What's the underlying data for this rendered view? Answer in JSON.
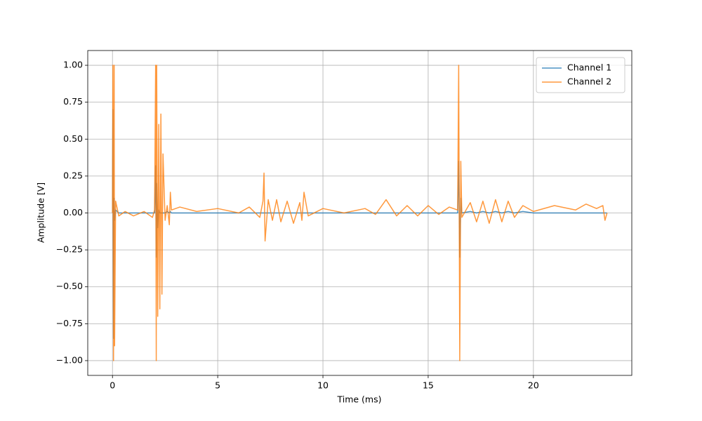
{
  "chart_data": {
    "type": "line",
    "xlabel": "Time (ms)",
    "ylabel": "Amplitude [V]",
    "x": [
      0,
      0.02,
      0.05,
      0.08,
      0.1,
      0.15,
      0.3,
      0.6,
      1.0,
      1.5,
      1.9,
      2.0,
      2.05,
      2.08,
      2.1,
      2.15,
      2.2,
      2.25,
      2.3,
      2.35,
      2.4,
      2.5,
      2.6,
      2.7,
      2.75,
      2.8,
      3.2,
      4,
      5,
      6,
      6.5,
      7.0,
      7.15,
      7.2,
      7.25,
      7.4,
      7.6,
      7.8,
      8.0,
      8.3,
      8.6,
      8.9,
      9.0,
      9.1,
      9.3,
      10,
      11,
      12,
      12.5,
      13,
      13.5,
      14,
      14.5,
      15,
      15.5,
      16,
      16.4,
      16.45,
      16.5,
      16.55,
      16.6,
      17,
      17.3,
      17.6,
      17.9,
      18.2,
      18.5,
      18.8,
      19.1,
      19.5,
      20,
      21,
      22,
      22.5,
      23,
      23.3,
      23.4,
      23.5
    ],
    "series": [
      {
        "name": "Channel 1",
        "color": "#1f77b4",
        "values": [
          0,
          0.7,
          -0.85,
          0.1,
          -0.05,
          0.02,
          0,
          0,
          0,
          0,
          0,
          0,
          0.32,
          -0.3,
          0.2,
          -0.1,
          0.02,
          0,
          0,
          0,
          0,
          0,
          0.01,
          0,
          0.01,
          0,
          0,
          0,
          0,
          0,
          0,
          0,
          0,
          0,
          0,
          0,
          0,
          0,
          0,
          0,
          0,
          0,
          0,
          0,
          0,
          0,
          0,
          0,
          0,
          0,
          0,
          0,
          0,
          0,
          0,
          0,
          0,
          0.35,
          -0.3,
          0.1,
          0,
          0.01,
          0,
          0.01,
          0,
          0.01,
          0,
          0.01,
          0,
          0.01,
          0,
          0,
          0,
          0,
          0,
          0,
          0,
          0
        ]
      },
      {
        "name": "Channel 2",
        "color": "#ff7f0e",
        "values": [
          0,
          1,
          -1,
          1,
          -0.9,
          0.08,
          -0.02,
          0.01,
          -0.02,
          0.01,
          -0.03,
          0.02,
          1,
          -1,
          1,
          -0.7,
          0.6,
          -0.65,
          0.67,
          -0.55,
          0.4,
          -0.05,
          0.05,
          -0.08,
          0.14,
          0.02,
          0.04,
          0.01,
          0.03,
          0,
          0.04,
          -0.03,
          0.08,
          0.27,
          -0.19,
          0.09,
          -0.05,
          0.09,
          -0.06,
          0.08,
          -0.07,
          0.07,
          -0.05,
          0.14,
          -0.02,
          0.03,
          0,
          0.03,
          -0.01,
          0.09,
          -0.02,
          0.05,
          -0.02,
          0.05,
          -0.01,
          0.04,
          0.02,
          1,
          -1,
          0.35,
          -0.03,
          0.07,
          -0.06,
          0.08,
          -0.07,
          0.09,
          -0.06,
          0.08,
          -0.03,
          0.05,
          0.01,
          0.05,
          0.02,
          0.06,
          0.03,
          0.05,
          -0.05,
          0
        ]
      }
    ],
    "xlim": [
      -1.175,
      24.675
    ],
    "ylim": [
      -1.1,
      1.1
    ],
    "xticks": [
      0,
      5,
      10,
      15,
      20
    ],
    "yticks": [
      {
        "value": -1,
        "label": "−1.00"
      },
      {
        "value": -0.75,
        "label": "−0.75"
      },
      {
        "value": -0.5,
        "label": "−0.50"
      },
      {
        "value": -0.25,
        "label": "−0.25"
      },
      {
        "value": 0,
        "label": "0.00"
      },
      {
        "value": 0.25,
        "label": "0.25"
      },
      {
        "value": 0.5,
        "label": "0.50"
      },
      {
        "value": 0.75,
        "label": "0.75"
      },
      {
        "value": 1,
        "label": "1.00"
      }
    ],
    "grid": true,
    "legend": "upper right"
  }
}
